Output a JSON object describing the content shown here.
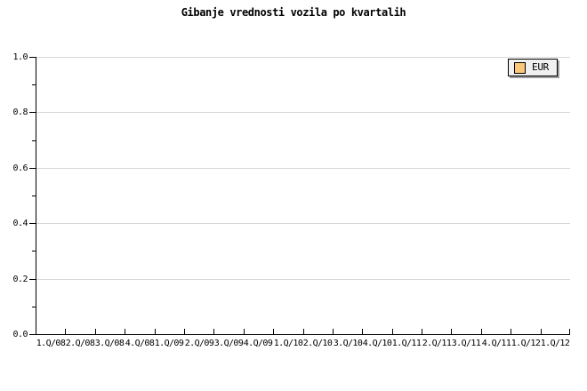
{
  "chart_data": {
    "type": "line",
    "title": "Gibanje vrednosti vozila po kvartalih",
    "categories": [
      "1.Q/08",
      "2.Q/08",
      "3.Q/08",
      "4.Q/08",
      "1.Q/09",
      "2.Q/09",
      "3.Q/09",
      "4.Q/09",
      "1.Q/10",
      "2.Q/10",
      "3.Q/10",
      "4.Q/10",
      "1.Q/11",
      "2.Q/11",
      "3.Q/11",
      "4.Q/11",
      "1.Q/12",
      "1.Q/12"
    ],
    "series": [
      {
        "name": "EUR",
        "color": "#fac878",
        "values": []
      }
    ],
    "xlabel": "",
    "ylabel": "",
    "ylim": [
      0.0,
      1.0
    ],
    "y_major_step": 0.2,
    "y_minor_step": 0.1,
    "y_tick_labels": [
      "0.0",
      "0.2",
      "0.4",
      "0.6",
      "0.8",
      "1.0"
    ],
    "grid": true,
    "legend_position": "top-right"
  },
  "colors": {
    "background": "#ffffff",
    "axis": "#000000",
    "grid": "#d8d8d8",
    "text": "#000000",
    "legend_bg": "#f0f0f0",
    "legend_border": "#000000",
    "legend_shadow": "#9e9e9e",
    "series_eur": "#fac878"
  }
}
